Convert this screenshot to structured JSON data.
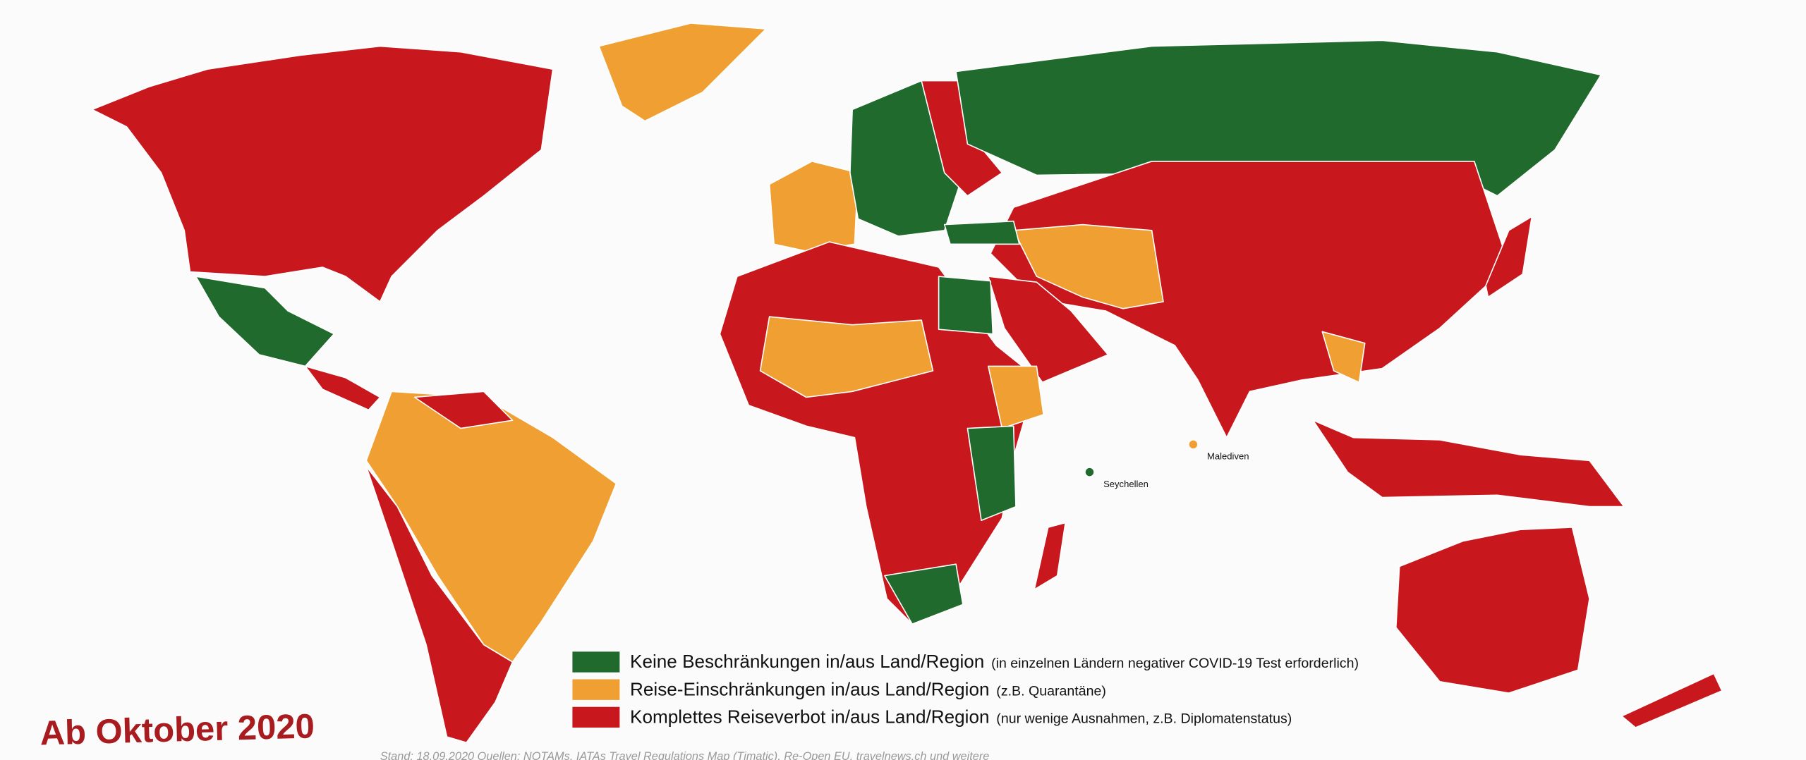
{
  "title": "Ab Oktober 2020",
  "legend": [
    {
      "label": "Keine Beschränkungen in/aus Land/Region",
      "note": "(in einzelnen Ländern negativer COVID-19 Test erforderlich)",
      "color": "#1f6a2c"
    },
    {
      "label": "Reise-Einschränkungen in/aus Land/Region",
      "note": "(z.B. Quarantäne)",
      "color": "#f0a032"
    },
    {
      "label": "Komplettes Reiseverbot in/aus Land/Region",
      "note": "(nur wenige Ausnahmen, z.B. Diplomatenstatus)",
      "color": "#c8181d"
    }
  ],
  "places": [
    {
      "label": "Seychellen",
      "color": "#1f6a2c"
    },
    {
      "label": "Malediven",
      "color": "#f0a032"
    }
  ],
  "footer": "Stand: 18.09.2020 Quellen: NOTAMs, IATAs Travel Regulations Map (Timatic), Re-Open EU, travelnews.ch und weitere"
}
